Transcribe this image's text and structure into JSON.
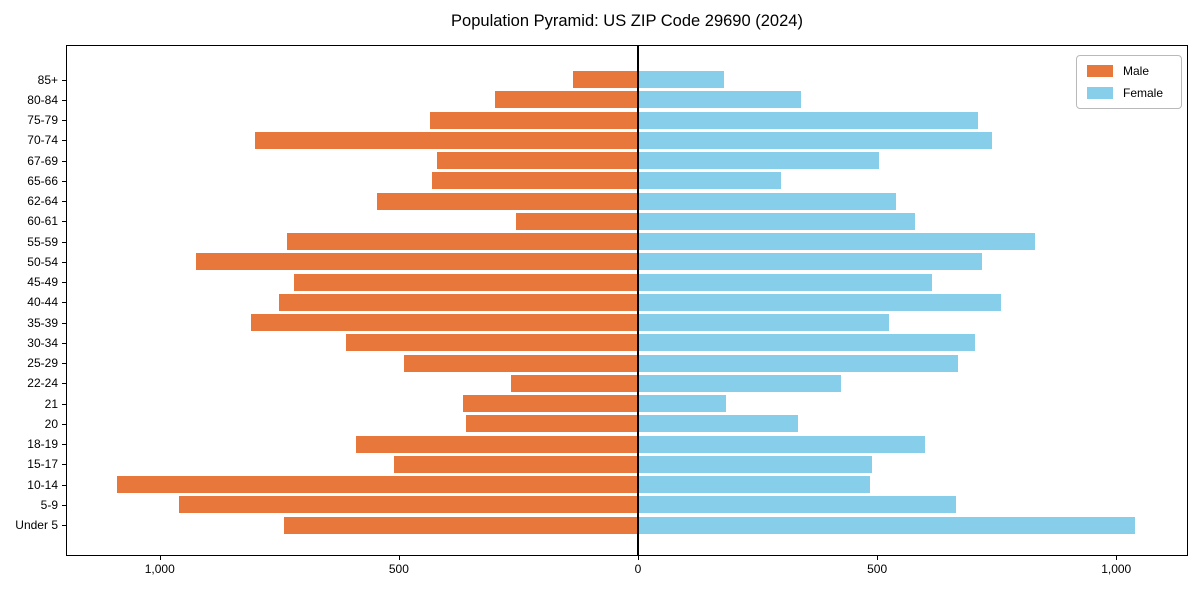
{
  "chart_data": {
    "type": "bar",
    "variant": "population-pyramid",
    "title": "Population Pyramid: US ZIP Code 29690 (2024)",
    "categories": [
      "85+",
      "80-84",
      "75-79",
      "70-74",
      "67-69",
      "65-66",
      "62-64",
      "60-61",
      "55-59",
      "50-54",
      "45-49",
      "40-44",
      "35-39",
      "30-34",
      "25-29",
      "22-24",
      "21",
      "20",
      "18-19",
      "15-17",
      "10-14",
      "5-9",
      "Under 5"
    ],
    "series": [
      {
        "name": "Male",
        "side": "left",
        "color": "#E8773B",
        "values": [
          135,
          300,
          435,
          800,
          420,
          430,
          545,
          255,
          735,
          925,
          720,
          750,
          810,
          610,
          490,
          265,
          365,
          360,
          590,
          510,
          1090,
          960,
          740
        ]
      },
      {
        "name": "Female",
        "side": "right",
        "color": "#87CEEB",
        "values": [
          180,
          340,
          710,
          740,
          505,
          300,
          540,
          580,
          830,
          720,
          615,
          760,
          525,
          705,
          670,
          425,
          185,
          335,
          600,
          490,
          485,
          665,
          1040
        ]
      }
    ],
    "xlim": [
      -1194,
      1148
    ],
    "x_ticks": {
      "values": [
        -1000,
        -500,
        0,
        500,
        1000
      ],
      "labels": [
        "1,000",
        "500",
        "0",
        "500",
        "1,000"
      ]
    },
    "legend": {
      "position": "upper-right",
      "entries": [
        "Male",
        "Female"
      ]
    },
    "grid": false,
    "zero_line": true,
    "xlabel": "",
    "ylabel": ""
  }
}
